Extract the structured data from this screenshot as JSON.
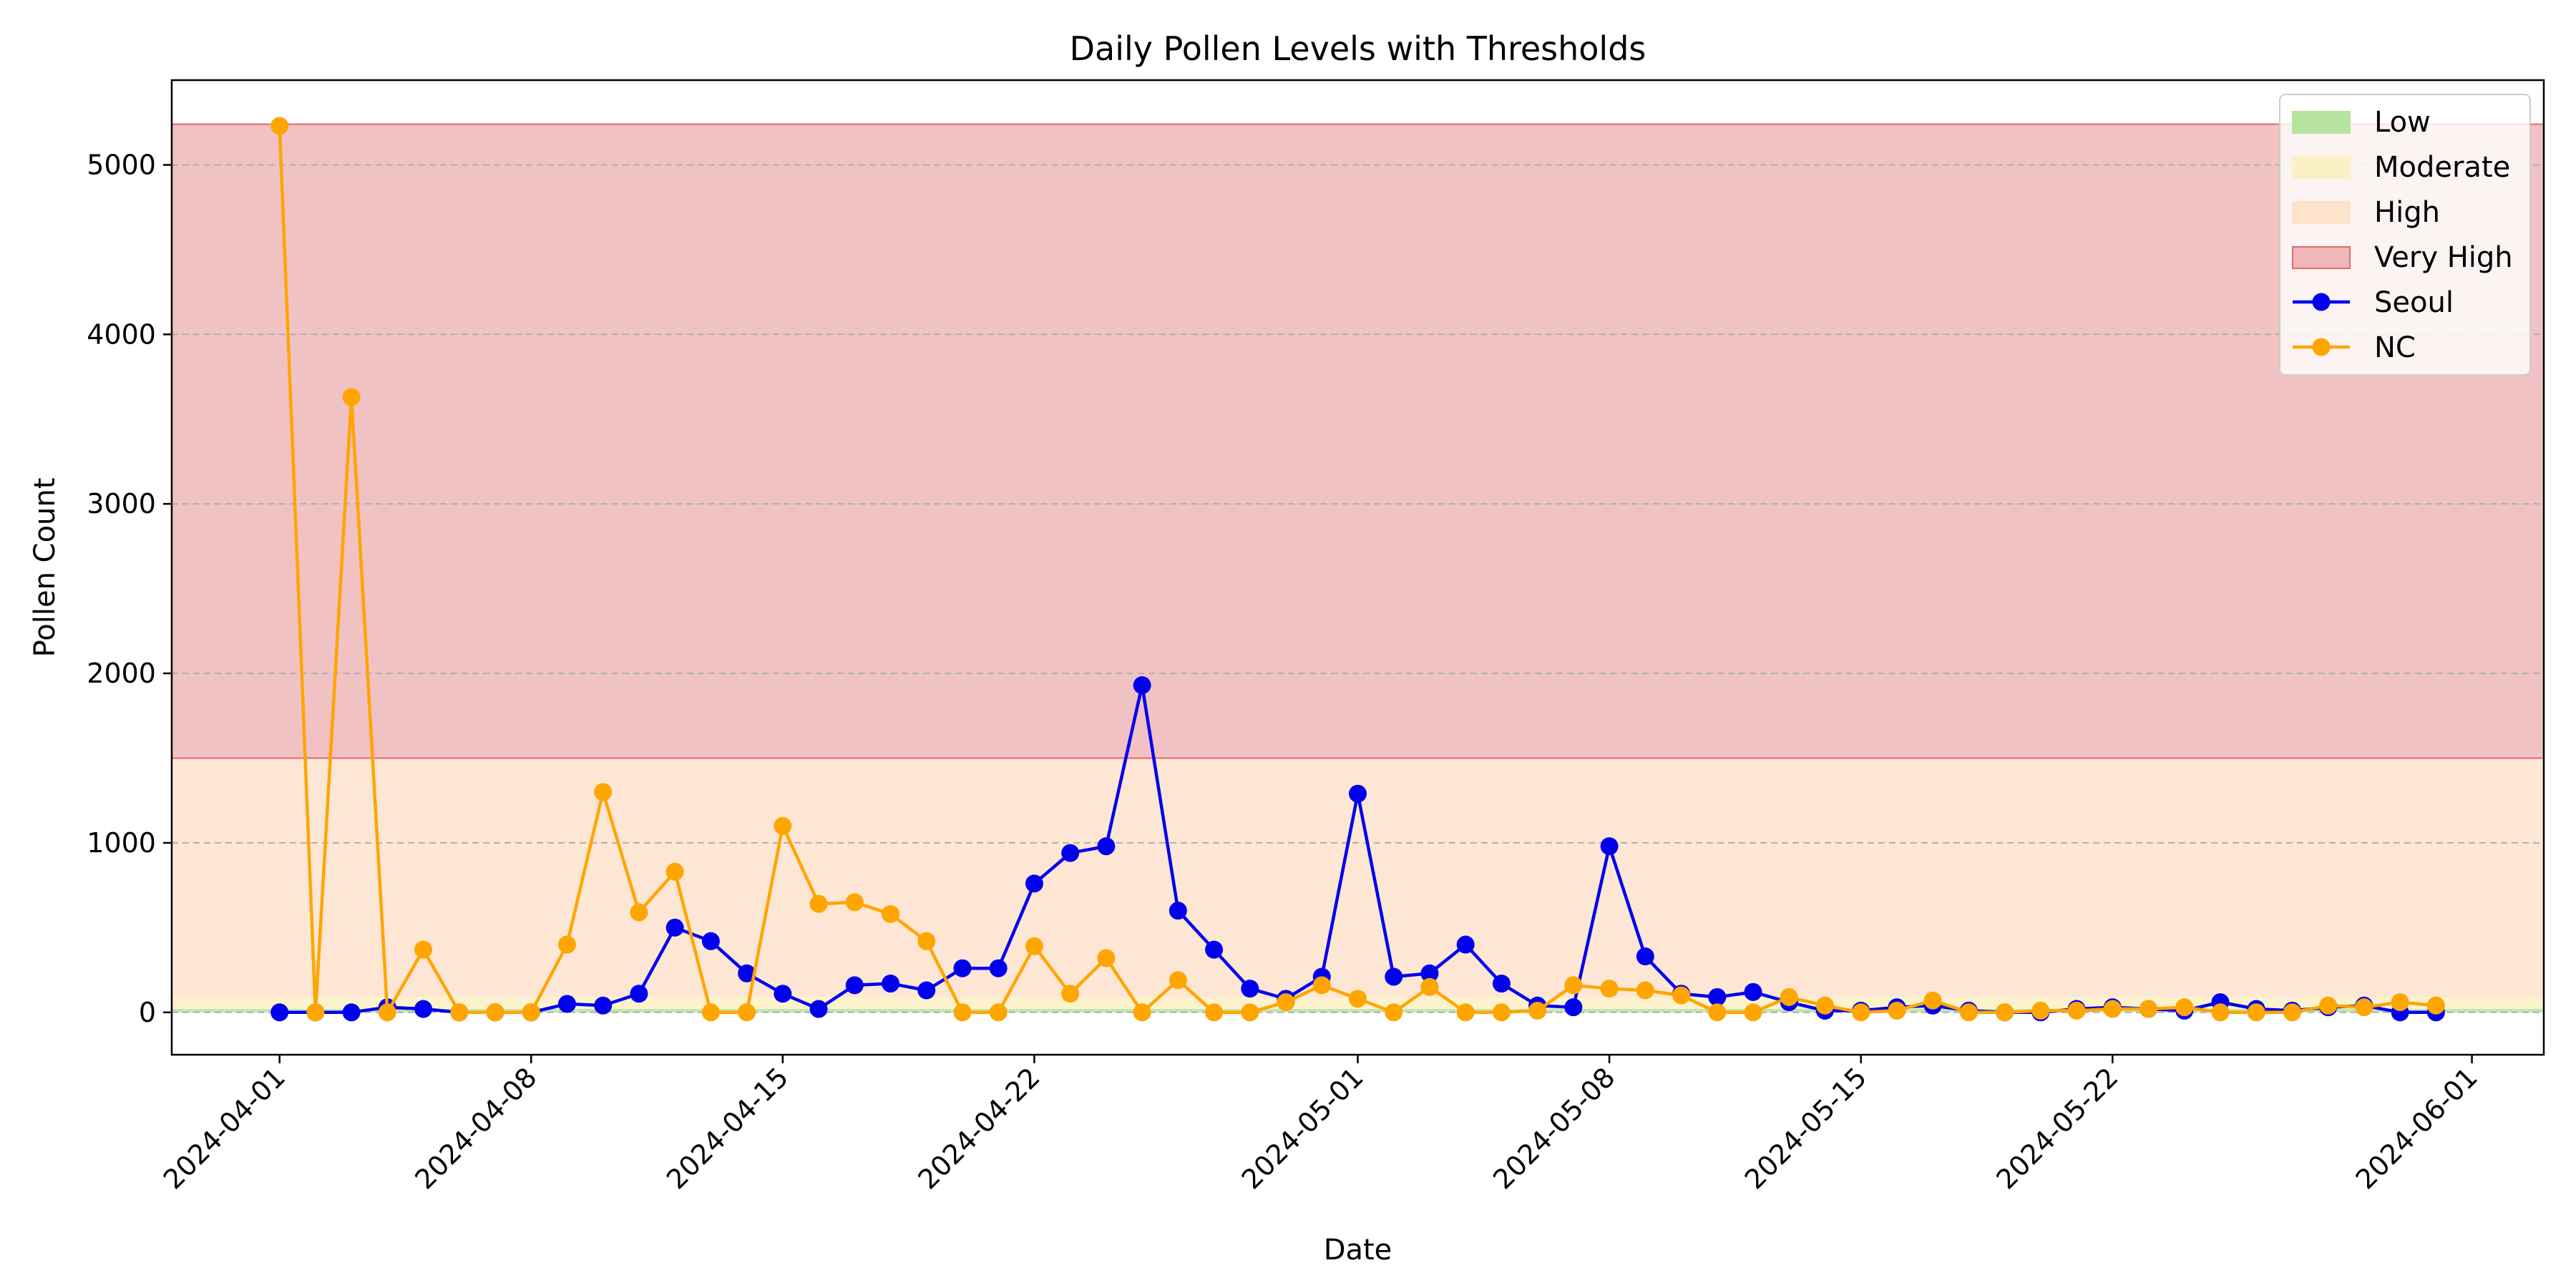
{
  "chart_data": {
    "type": "line",
    "title": "Daily Pollen Levels with Thresholds",
    "xlabel": "Date",
    "ylabel": "Pollen Count",
    "x_axis": {
      "type": "date",
      "range": [
        "2024-03-29",
        "2024-06-03"
      ],
      "tick_labels": [
        "2024-04-01",
        "2024-04-08",
        "2024-04-15",
        "2024-04-22",
        "2024-05-01",
        "2024-05-08",
        "2024-05-15",
        "2024-05-22",
        "2024-06-01"
      ]
    },
    "y_axis": {
      "range": [
        -250,
        5500
      ],
      "ticks": [
        0,
        1000,
        2000,
        3000,
        4000,
        5000
      ]
    },
    "grid": "y-dashed",
    "legend_position": "top-right",
    "thresholds": [
      {
        "name": "Low",
        "range": [
          0,
          20
        ],
        "color": "#b7e3a0"
      },
      {
        "name": "Moderate",
        "range": [
          20,
          90
        ],
        "color": "#fbf1c4"
      },
      {
        "name": "High",
        "range": [
          90,
          1500
        ],
        "color": "#fde3cc"
      },
      {
        "name": "Very High",
        "range": [
          1500,
          5240
        ],
        "color": "#efb7b8",
        "edge": "#e06b6b"
      }
    ],
    "series": [
      {
        "name": "Seoul",
        "color": "#0000ee",
        "x": [
          "2024-04-01",
          "2024-04-02",
          "2024-04-03",
          "2024-04-04",
          "2024-04-05",
          "2024-04-06",
          "2024-04-07",
          "2024-04-08",
          "2024-04-09",
          "2024-04-10",
          "2024-04-11",
          "2024-04-12",
          "2024-04-13",
          "2024-04-14",
          "2024-04-15",
          "2024-04-16",
          "2024-04-17",
          "2024-04-18",
          "2024-04-19",
          "2024-04-20",
          "2024-04-21",
          "2024-04-22",
          "2024-04-23",
          "2024-04-24",
          "2024-04-25",
          "2024-04-26",
          "2024-04-27",
          "2024-04-28",
          "2024-04-29",
          "2024-04-30",
          "2024-05-01",
          "2024-05-02",
          "2024-05-03",
          "2024-05-04",
          "2024-05-05",
          "2024-05-06",
          "2024-05-07",
          "2024-05-08",
          "2024-05-09",
          "2024-05-10",
          "2024-05-11",
          "2024-05-12",
          "2024-05-13",
          "2024-05-14",
          "2024-05-15",
          "2024-05-16",
          "2024-05-17",
          "2024-05-18",
          "2024-05-19",
          "2024-05-20",
          "2024-05-21",
          "2024-05-22",
          "2024-05-23",
          "2024-05-24",
          "2024-05-25",
          "2024-05-26",
          "2024-05-27",
          "2024-05-28",
          "2024-05-29",
          "2024-05-30",
          "2024-05-31"
        ],
        "values": [
          0,
          0,
          0,
          30,
          20,
          0,
          0,
          0,
          50,
          40,
          110,
          500,
          420,
          230,
          110,
          20,
          160,
          170,
          130,
          260,
          260,
          760,
          940,
          980,
          1930,
          600,
          370,
          140,
          80,
          210,
          1290,
          210,
          230,
          400,
          170,
          40,
          30,
          980,
          330,
          110,
          90,
          120,
          60,
          10,
          10,
          30,
          40,
          10,
          0,
          0,
          20,
          30,
          20,
          10,
          60,
          20,
          10,
          30,
          40,
          0,
          0
        ]
      },
      {
        "name": "NC",
        "color": "#ffa500",
        "x": [
          "2024-04-01",
          "2024-04-02",
          "2024-04-03",
          "2024-04-04",
          "2024-04-05",
          "2024-04-06",
          "2024-04-07",
          "2024-04-08",
          "2024-04-09",
          "2024-04-10",
          "2024-04-11",
          "2024-04-12",
          "2024-04-13",
          "2024-04-14",
          "2024-04-15",
          "2024-04-16",
          "2024-04-17",
          "2024-04-18",
          "2024-04-19",
          "2024-04-20",
          "2024-04-21",
          "2024-04-22",
          "2024-04-23",
          "2024-04-24",
          "2024-04-25",
          "2024-04-26",
          "2024-04-27",
          "2024-04-28",
          "2024-04-29",
          "2024-04-30",
          "2024-05-01",
          "2024-05-02",
          "2024-05-03",
          "2024-05-04",
          "2024-05-05",
          "2024-05-06",
          "2024-05-07",
          "2024-05-08",
          "2024-05-09",
          "2024-05-10",
          "2024-05-11",
          "2024-05-12",
          "2024-05-13",
          "2024-05-14",
          "2024-05-15",
          "2024-05-16",
          "2024-05-17",
          "2024-05-18",
          "2024-05-19",
          "2024-05-20",
          "2024-05-21",
          "2024-05-22",
          "2024-05-23",
          "2024-05-24",
          "2024-05-25",
          "2024-05-26",
          "2024-05-27",
          "2024-05-28",
          "2024-05-29",
          "2024-05-30",
          "2024-05-31"
        ],
        "values": [
          5230,
          0,
          3630,
          0,
          370,
          0,
          0,
          0,
          400,
          1300,
          590,
          830,
          0,
          0,
          1100,
          640,
          650,
          580,
          420,
          0,
          0,
          390,
          110,
          320,
          0,
          190,
          0,
          0,
          60,
          160,
          80,
          0,
          150,
          0,
          0,
          10,
          160,
          140,
          130,
          100,
          0,
          0,
          90,
          40,
          0,
          10,
          70,
          0,
          0,
          10,
          10,
          20,
          20,
          30,
          0,
          0,
          0,
          40,
          30,
          60,
          40
        ]
      }
    ]
  }
}
